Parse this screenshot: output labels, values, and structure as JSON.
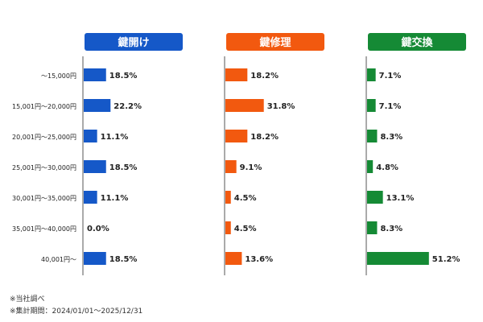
{
  "chart_data": {
    "type": "bar",
    "orientation": "horizontal",
    "categories": [
      "～15,000円",
      "15,001円～20,000円",
      "20,001円～25,000円",
      "25,001円～30,000円",
      "30,001円～35,000円",
      "35,001円～40,000円",
      "40,001円～"
    ],
    "series": [
      {
        "name": "鍵開け",
        "color": "#1558c8",
        "values": [
          18.5,
          22.2,
          11.1,
          18.5,
          11.1,
          0.0,
          18.5
        ],
        "labels": [
          "18.5%",
          "22.2%",
          "11.1%",
          "18.5%",
          "11.1%",
          "0.0%",
          "18.5%"
        ]
      },
      {
        "name": "鍵修理",
        "color": "#f2590f",
        "values": [
          18.2,
          31.8,
          18.2,
          9.1,
          4.5,
          4.5,
          13.6
        ],
        "labels": [
          "18.2%",
          "31.8%",
          "18.2%",
          "9.1%",
          "4.5%",
          "4.5%",
          "13.6%"
        ]
      },
      {
        "name": "鍵交換",
        "color": "#158a35",
        "values": [
          7.1,
          7.1,
          8.3,
          4.8,
          13.1,
          8.3,
          51.2
        ],
        "labels": [
          "7.1%",
          "7.1%",
          "8.3%",
          "4.8%",
          "13.1%",
          "8.3%",
          "51.2%"
        ]
      }
    ],
    "unit": "%",
    "legend": "none",
    "grid": false
  },
  "notes": {
    "source": "※当社調べ",
    "period": "※集計期間：2024/01/01～2025/12/31"
  }
}
